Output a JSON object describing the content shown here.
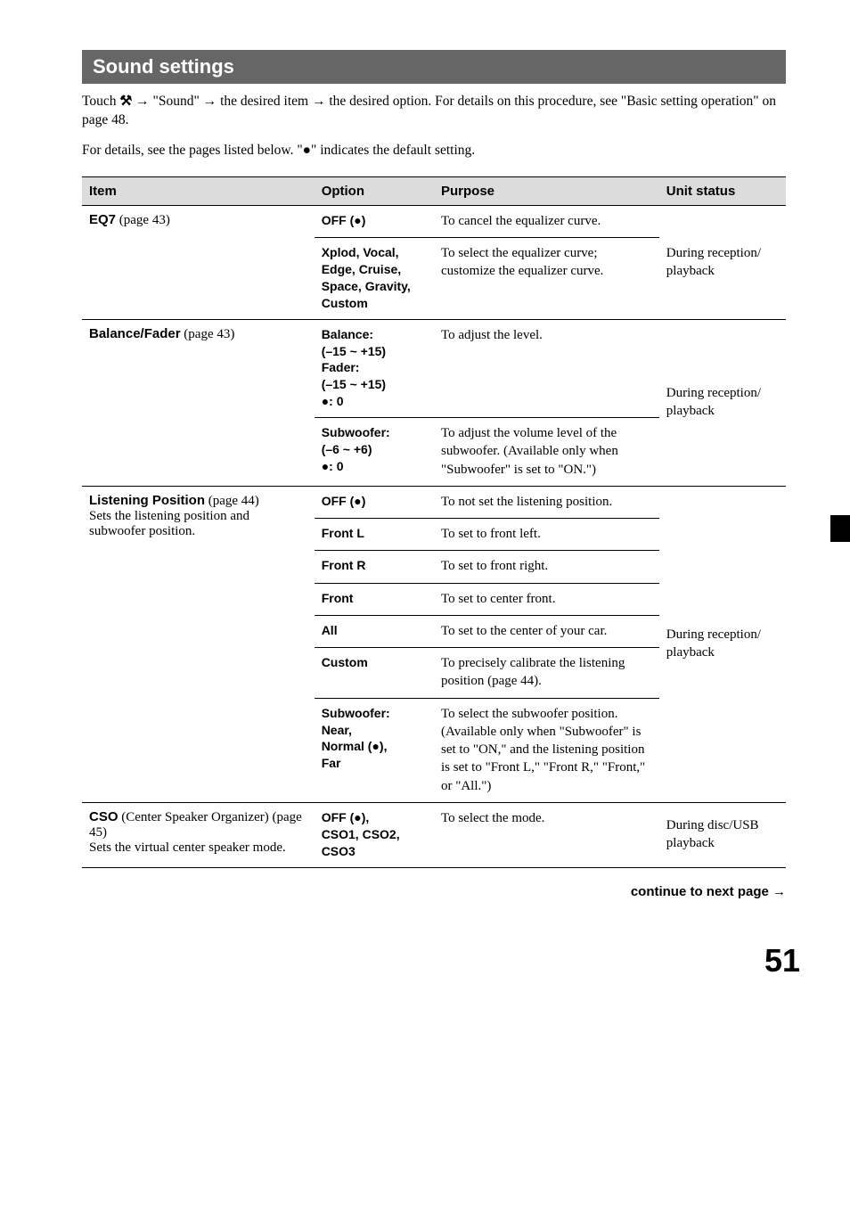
{
  "section_title": "Sound settings",
  "intro_pre": "Touch ",
  "intro_icon": "⚒",
  "intro_post": " → \"Sound\" → the desired item → the desired option. For details on this procedure, see \"Basic setting operation\" on page 48.",
  "details_line": "For details, see the pages listed below. \"●\" indicates the default setting.",
  "headers": {
    "item": "Item",
    "option": "Option",
    "purpose": "Purpose",
    "status": "Unit status"
  },
  "rows": {
    "eq7": {
      "name": "EQ7",
      "page": " (page 43)",
      "opt1": "OFF (●)",
      "pur1": "To cancel the equalizer curve.",
      "opt2": "Xplod, Vocal, Edge, Cruise, Space, Gravity, Custom",
      "pur2": "To select the equalizer curve; customize the equalizer curve.",
      "status": "During reception/\nplayback"
    },
    "bf": {
      "name": "Balance/Fader",
      "page": " (page 43)",
      "opt1": "Balance:\n(–15 ~ +15)\nFader:\n(–15 ~ +15)\n●: 0",
      "pur1": "To adjust the level.",
      "opt2": "Subwoofer:\n(–6 ~ +6)\n●: 0",
      "pur2": "To adjust the volume level of the subwoofer. (Available only when \"Subwoofer\" is set to \"ON.\")",
      "status": "During reception/\nplayback"
    },
    "lp": {
      "name": "Listening Position",
      "page": " (page 44)",
      "desc": "Sets the listening position and subwoofer position.",
      "opt1": "OFF (●)",
      "pur1": "To not set the listening position.",
      "opt2": "Front L",
      "pur2": "To set to front left.",
      "opt3": "Front R",
      "pur3": "To set to front right.",
      "opt4": "Front",
      "pur4": "To set to center front.",
      "opt5": "All",
      "pur5": "To set to the center of your car.",
      "opt6": "Custom",
      "pur6": "To precisely calibrate the listening position (page 44).",
      "opt7": "Subwoofer:\nNear,\nNormal (●),\nFar",
      "pur7": "To select the subwoofer position. (Available only when \"Subwoofer\" is set to \"ON,\" and the listening position is set to \"Front L,\" \"Front R,\" \"Front,\" or \"All.\")",
      "status": "During reception/\nplayback"
    },
    "cso": {
      "name": "CSO",
      "name_post": " (Center Speaker Organizer) (page 45)",
      "desc": "Sets the virtual center speaker mode.",
      "opt1": "OFF (●),\nCSO1, CSO2, CSO3",
      "pur1": "To select the mode.",
      "status": "During disc/USB playback"
    }
  },
  "continue": "continue to next page →",
  "page_number": "51"
}
